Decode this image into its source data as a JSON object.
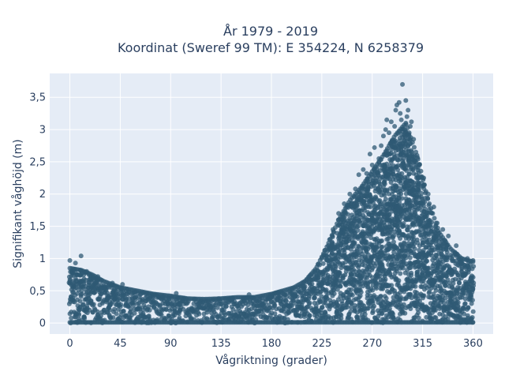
{
  "chart_data": {
    "type": "scatter",
    "title_line1": "År 1979 - 2019",
    "title_line2": "Koordinat (Sweref 99 TM): E 354224, N 6258379",
    "xlabel": "Vågriktning (grader)",
    "ylabel": "Signifikant våghöjd (m)",
    "xlim": [
      -18,
      378
    ],
    "ylim": [
      -0.17,
      3.87
    ],
    "xticks": [
      0,
      45,
      90,
      135,
      180,
      225,
      270,
      315,
      360
    ],
    "xtick_labels": [
      "0",
      "45",
      "90",
      "135",
      "180",
      "225",
      "270",
      "315",
      "360"
    ],
    "yticks": [
      0,
      0.5,
      1,
      1.5,
      2,
      2.5,
      3,
      3.5
    ],
    "ytick_labels": [
      "0",
      "0,5",
      "1",
      "1,5",
      "2",
      "2,5",
      "3",
      "3,5"
    ],
    "grid": true,
    "legend": "none",
    "marker_color": "#2f5a74",
    "background_color": "#e5ecf6",
    "envelope": {
      "direction": [
        0,
        10,
        20,
        30,
        45,
        60,
        75,
        90,
        105,
        120,
        135,
        150,
        165,
        180,
        190,
        200,
        210,
        220,
        230,
        240,
        250,
        260,
        270,
        280,
        290,
        300,
        310,
        320,
        330,
        340,
        350,
        360
      ],
      "min_height": [
        0,
        0,
        0,
        0,
        0,
        0,
        0,
        0,
        0,
        0,
        0,
        0,
        0,
        0,
        0,
        0,
        0,
        0,
        0,
        0,
        0,
        0,
        0,
        0,
        0,
        0,
        0,
        0,
        0,
        0,
        0,
        0
      ],
      "max_height": [
        0.85,
        0.82,
        0.75,
        0.65,
        0.55,
        0.5,
        0.45,
        0.42,
        0.38,
        0.37,
        0.38,
        0.4,
        0.4,
        0.45,
        0.5,
        0.55,
        0.65,
        0.85,
        1.2,
        1.6,
        1.9,
        2.1,
        2.35,
        2.6,
        2.9,
        3.1,
        2.6,
        1.9,
        1.4,
        1.15,
        1.0,
        0.95
      ]
    },
    "points": [
      {
        "x": 0,
        "y": 0.97
      },
      {
        "x": 5,
        "y": 0.93
      },
      {
        "x": 10,
        "y": 1.04
      },
      {
        "x": 15,
        "y": 0.8
      },
      {
        "x": 25,
        "y": 0.72
      },
      {
        "x": 38,
        "y": 0.62
      },
      {
        "x": 47,
        "y": 0.6
      },
      {
        "x": 95,
        "y": 0.46
      },
      {
        "x": 160,
        "y": 0.44
      },
      {
        "x": 235,
        "y": 1.45
      },
      {
        "x": 240,
        "y": 1.7
      },
      {
        "x": 245,
        "y": 1.85
      },
      {
        "x": 250,
        "y": 2.0
      },
      {
        "x": 255,
        "y": 2.08
      },
      {
        "x": 258,
        "y": 2.3
      },
      {
        "x": 262,
        "y": 2.38
      },
      {
        "x": 265,
        "y": 2.32
      },
      {
        "x": 268,
        "y": 2.62
      },
      {
        "x": 270,
        "y": 2.45
      },
      {
        "x": 272,
        "y": 2.72
      },
      {
        "x": 276,
        "y": 2.55
      },
      {
        "x": 278,
        "y": 2.75
      },
      {
        "x": 280,
        "y": 2.9
      },
      {
        "x": 282,
        "y": 3.0
      },
      {
        "x": 283,
        "y": 3.15
      },
      {
        "x": 285,
        "y": 2.95
      },
      {
        "x": 287,
        "y": 3.12
      },
      {
        "x": 288,
        "y": 2.8
      },
      {
        "x": 290,
        "y": 3.05
      },
      {
        "x": 291,
        "y": 3.3
      },
      {
        "x": 292,
        "y": 3.38
      },
      {
        "x": 294,
        "y": 3.42
      },
      {
        "x": 295,
        "y": 3.25
      },
      {
        "x": 296,
        "y": 3.15
      },
      {
        "x": 297,
        "y": 3.7
      },
      {
        "x": 299,
        "y": 3.0
      },
      {
        "x": 300,
        "y": 3.45
      },
      {
        "x": 301,
        "y": 3.2
      },
      {
        "x": 302,
        "y": 3.3
      },
      {
        "x": 304,
        "y": 3.05
      },
      {
        "x": 305,
        "y": 3.12
      },
      {
        "x": 307,
        "y": 2.85
      },
      {
        "x": 310,
        "y": 2.6
      },
      {
        "x": 312,
        "y": 2.45
      },
      {
        "x": 316,
        "y": 2.25
      },
      {
        "x": 320,
        "y": 2.0
      },
      {
        "x": 325,
        "y": 1.8
      },
      {
        "x": 328,
        "y": 1.55
      },
      {
        "x": 333,
        "y": 1.45
      },
      {
        "x": 338,
        "y": 1.35
      },
      {
        "x": 345,
        "y": 1.2
      },
      {
        "x": 355,
        "y": 1.0
      },
      {
        "x": 360,
        "y": 0.97
      }
    ]
  }
}
